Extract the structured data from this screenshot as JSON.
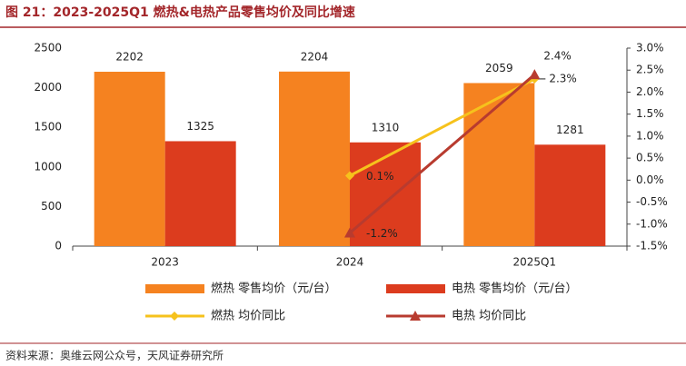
{
  "chart_data": {
    "type": "bar",
    "title": "图 21：2023-2025Q1 燃热&电热产品零售均价及同比增速",
    "source": "资料来源：奥维云网公众号，天风证券研究所",
    "categories": [
      "2023",
      "2024",
      "2025Q1"
    ],
    "series": [
      {
        "name": "燃热 零售均价（元/台）",
        "color": "#f58220",
        "type": "bar",
        "values": [
          2202,
          2204,
          2059
        ]
      },
      {
        "name": "电热 零售均价（元/台）",
        "color": "#dc3c1e",
        "type": "bar",
        "values": [
          1325,
          1310,
          1281
        ]
      },
      {
        "name": "燃热 均价同比",
        "color": "#f6c21c",
        "type": "line",
        "marker": "diamond",
        "axis": "y2",
        "values": [
          null,
          0.1,
          2.3
        ],
        "value_labels": [
          null,
          "0.1%",
          "2.3%"
        ]
      },
      {
        "name": "电热 均价同比",
        "color": "#b83b2f",
        "type": "line",
        "marker": "triangle",
        "axis": "y2",
        "values": [
          null,
          -1.2,
          2.4
        ],
        "value_labels": [
          null,
          "-1.2%",
          "2.4%"
        ]
      }
    ],
    "ylim": [
      0,
      2500
    ],
    "yticks": [
      0,
      500,
      1000,
      1500,
      2000,
      2500
    ],
    "y2lim": [
      -1.5,
      3.0
    ],
    "y2ticks": [
      {
        "value": -1.5,
        "label": "-1.5%"
      },
      {
        "value": -1,
        "label": "-1.0%"
      },
      {
        "value": -0.5,
        "label": "-0.5%"
      },
      {
        "value": 0,
        "label": "0.0%"
      },
      {
        "value": 0.5,
        "label": "0.5%"
      },
      {
        "value": 1,
        "label": "1.0%"
      },
      {
        "value": 1.5,
        "label": "1.5%"
      },
      {
        "value": 2,
        "label": "2.0%"
      },
      {
        "value": 2.5,
        "label": "2.5%"
      },
      {
        "value": 3,
        "label": "3.0%"
      }
    ],
    "legend": "bottom"
  }
}
